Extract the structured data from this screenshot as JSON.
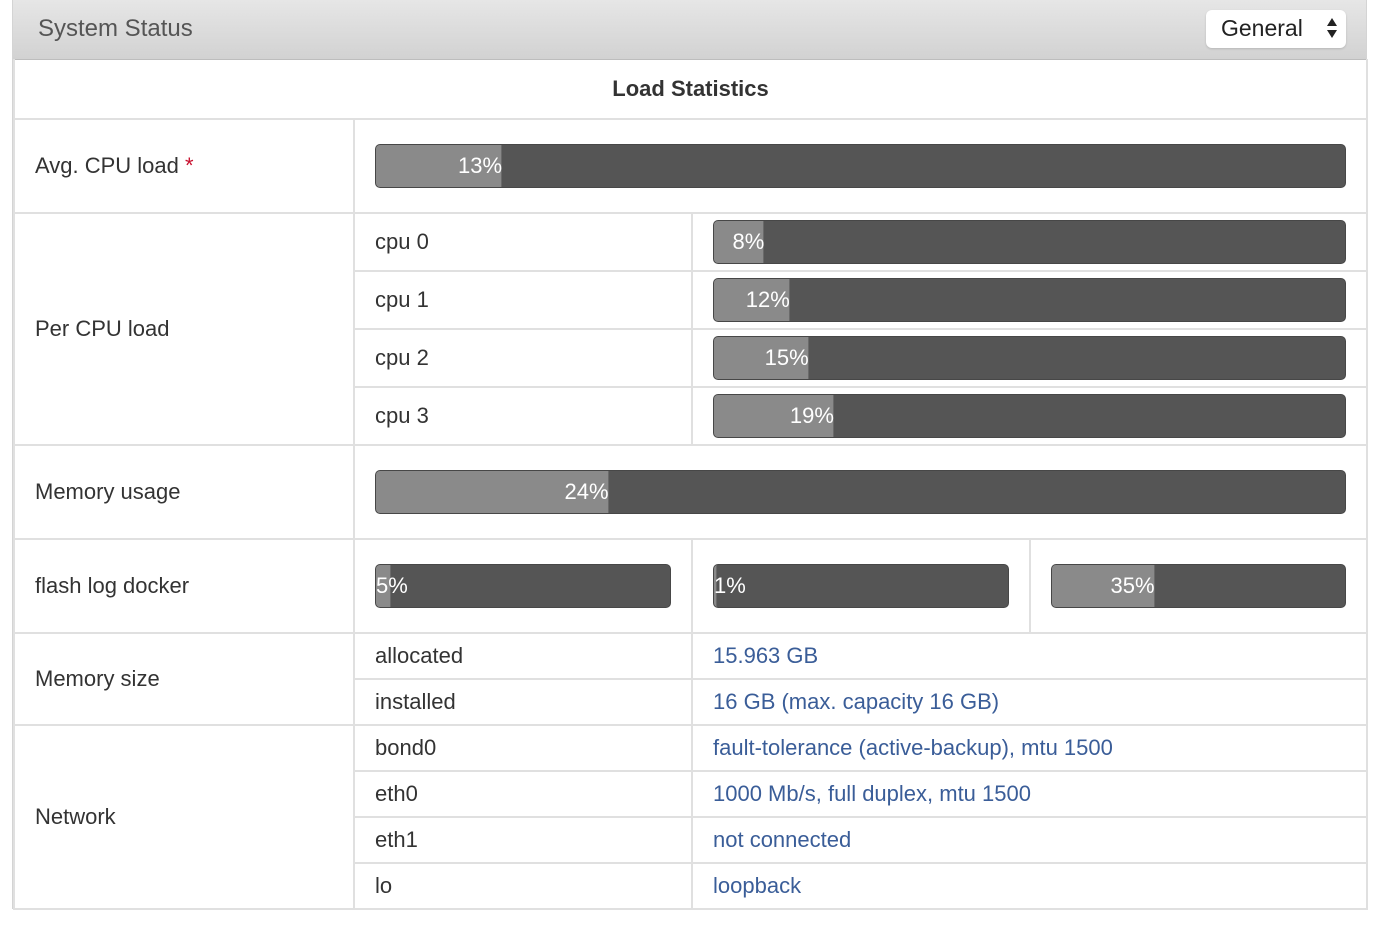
{
  "header": {
    "title": "System Status",
    "select_value": "General"
  },
  "load": {
    "caption": "Load Statistics",
    "avg_cpu": {
      "label": "Avg. CPU load",
      "required_mark": "*",
      "percent": 13,
      "text": "13%"
    },
    "per_cpu": {
      "label": "Per CPU load",
      "cpus": [
        {
          "name": "cpu 0",
          "percent": 8,
          "text": "8%"
        },
        {
          "name": "cpu 1",
          "percent": 12,
          "text": "12%"
        },
        {
          "name": "cpu 2",
          "percent": 15,
          "text": "15%"
        },
        {
          "name": "cpu 3",
          "percent": 19,
          "text": "19%"
        }
      ]
    },
    "memory_usage": {
      "label": "Memory usage",
      "percent": 24,
      "text": "24%"
    },
    "storage": {
      "label": "flash log docker",
      "bars": [
        {
          "name": "flash",
          "percent": 5,
          "text": "5%"
        },
        {
          "name": "log",
          "percent": 1,
          "text": "1%"
        },
        {
          "name": "docker",
          "percent": 35,
          "text": "35%"
        }
      ]
    },
    "memory_size": {
      "label": "Memory size",
      "rows": [
        {
          "key": "allocated",
          "value": "15.963 GB"
        },
        {
          "key": "installed",
          "value": "16 GB (max. capacity 16 GB)"
        }
      ]
    },
    "network": {
      "label": "Network",
      "rows": [
        {
          "key": "bond0",
          "value": "fault-tolerance (active-backup), mtu 1500"
        },
        {
          "key": "eth0",
          "value": "1000 Mb/s, full duplex, mtu 1500"
        },
        {
          "key": "eth1",
          "value": "not connected"
        },
        {
          "key": "lo",
          "value": "loopback"
        }
      ]
    }
  }
}
